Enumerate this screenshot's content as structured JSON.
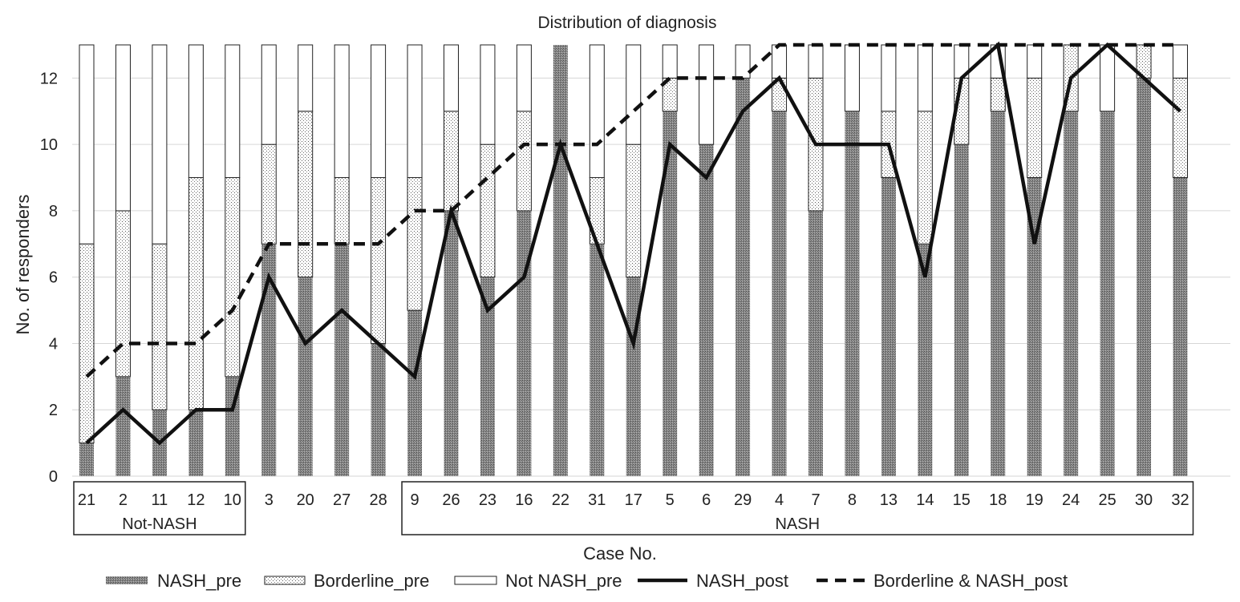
{
  "chart_data": {
    "type": "bar",
    "title": "Distribution of diagnosis",
    "xlabel": "Case No.",
    "ylabel": "No. of responders",
    "ylim": [
      0,
      13
    ],
    "yticks": [
      0,
      2,
      4,
      6,
      8,
      10,
      12
    ],
    "grid": true,
    "legend_position": "bottom",
    "categories": [
      "21",
      "2",
      "11",
      "12",
      "10",
      "3",
      "20",
      "27",
      "28",
      "9",
      "26",
      "23",
      "16",
      "22",
      "31",
      "17",
      "5",
      "6",
      "29",
      "4",
      "7",
      "8",
      "13",
      "14",
      "15",
      "18",
      "19",
      "24",
      "25",
      "30",
      "32"
    ],
    "groups": [
      {
        "label": "Not-NASH",
        "from": 0,
        "to": 4
      },
      {
        "label": "NASH",
        "from": 9,
        "to": 30
      }
    ],
    "series": [
      {
        "name": "NASH_pre",
        "kind": "stacked-bar",
        "color": "#7a7a7a",
        "values": [
          1,
          3,
          2,
          2,
          3,
          7,
          6,
          7,
          4,
          5,
          8,
          6,
          8,
          13,
          7,
          6,
          11,
          10,
          12,
          11,
          8,
          11,
          9,
          7,
          10,
          11,
          9,
          11,
          11,
          12,
          9
        ]
      },
      {
        "name": "Borderline_pre",
        "kind": "stacked-bar",
        "color": "#f2f2f2",
        "values": [
          6,
          5,
          5,
          7,
          6,
          3,
          5,
          2,
          5,
          4,
          3,
          4,
          3,
          0,
          2,
          4,
          1,
          0,
          0,
          1,
          4,
          0,
          2,
          4,
          2,
          1,
          3,
          2,
          0,
          1,
          3
        ]
      },
      {
        "name": "Not NASH_pre",
        "kind": "stacked-bar",
        "color": "#ffffff",
        "values": [
          6,
          5,
          6,
          4,
          4,
          3,
          2,
          4,
          4,
          4,
          2,
          3,
          2,
          0,
          4,
          3,
          1,
          3,
          1,
          1,
          1,
          2,
          2,
          2,
          1,
          1,
          1,
          0,
          2,
          0,
          1
        ]
      },
      {
        "name": "NASH_post",
        "kind": "line",
        "style": "solid",
        "color": "#111111",
        "values": [
          1,
          2,
          1,
          2,
          2,
          6,
          4,
          5,
          4,
          3,
          8,
          5,
          6,
          10,
          7,
          4,
          10,
          9,
          11,
          12,
          10,
          10,
          10,
          6,
          12,
          13,
          7,
          12,
          13,
          12,
          11
        ]
      },
      {
        "name": "Borderline & NASH_post",
        "kind": "line",
        "style": "dashed",
        "color": "#111111",
        "values": [
          3,
          4,
          4,
          4,
          5,
          7,
          7,
          7,
          7,
          8,
          8,
          9,
          10,
          10,
          10,
          11,
          12,
          12,
          12,
          13,
          13,
          13,
          13,
          13,
          13,
          13,
          13,
          13,
          13,
          13,
          13
        ]
      }
    ]
  }
}
